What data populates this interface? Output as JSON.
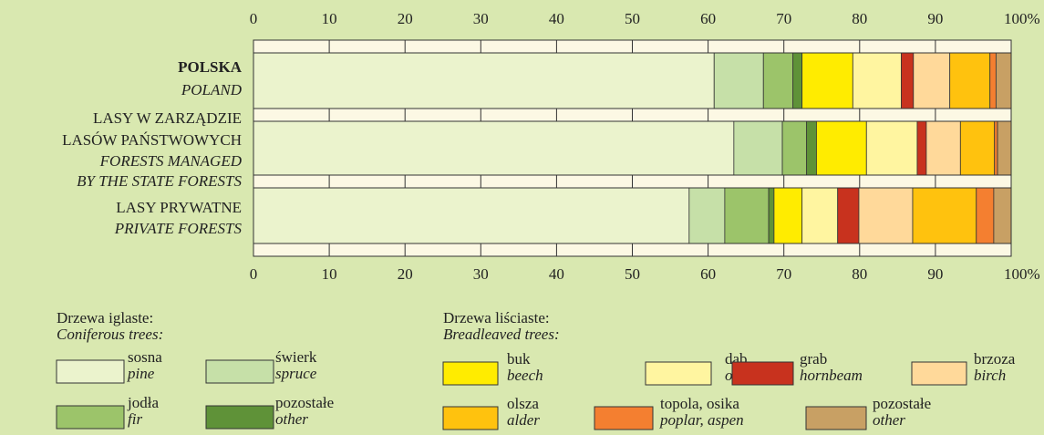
{
  "chart_data": {
    "type": "stacked-bar-horizontal",
    "categories": [
      {
        "pl": [
          "POLSKA"
        ],
        "en": [
          "POLAND"
        ]
      },
      {
        "pl": [
          "LASY W ZARZĄDZIE",
          "LASÓW PAŃSTWOWYCH"
        ],
        "en": [
          "FORESTS MANAGED",
          "BY THE STATE FORESTS"
        ]
      },
      {
        "pl": [
          "LASY PRYWATNE"
        ],
        "en": [
          "PRIVATE FORESTS"
        ]
      }
    ],
    "xlim": [
      0,
      100
    ],
    "xticks": [
      0,
      10,
      20,
      30,
      40,
      50,
      60,
      70,
      80,
      90,
      {
        "value": 100,
        "label": "100%"
      }
    ],
    "groups": [
      {
        "name": "Drzewa iglaste:",
        "name_en": "Coniferous trees:"
      },
      {
        "name": "Drzewa liściaste:",
        "name_en": "Breadleaved trees:"
      }
    ],
    "series": [
      {
        "name": "sosna",
        "name_en": "pine",
        "group": 0,
        "color": "#ebf3cd",
        "values": [
          60.8,
          63.4,
          57.5
        ]
      },
      {
        "name": "świerk",
        "name_en": "spruce",
        "group": 0,
        "color": "#c6e0a8",
        "values": [
          6.5,
          6.4,
          4.7
        ]
      },
      {
        "name": "jodła",
        "name_en": "fir",
        "group": 0,
        "color": "#9cc46a",
        "values": [
          3.9,
          3.2,
          5.8
        ]
      },
      {
        "name": "pozostałe",
        "name_en": "other",
        "group": 0,
        "color": "#5f9238",
        "values": [
          1.2,
          1.3,
          0.7
        ]
      },
      {
        "name": "buk",
        "name_en": "beech",
        "group": 1,
        "color": "#ffec00",
        "values": [
          6.7,
          6.6,
          3.7
        ]
      },
      {
        "name": "dąb",
        "name_en": "oak",
        "group": 1,
        "color": "#fff5a0",
        "values": [
          6.4,
          6.7,
          4.7
        ]
      },
      {
        "name": "grab",
        "name_en": "hornbeam",
        "group": 1,
        "color": "#c8321e",
        "values": [
          1.6,
          1.2,
          2.8
        ]
      },
      {
        "name": "brzoza",
        "name_en": "birch",
        "group": 1,
        "color": "#ffd99a",
        "values": [
          4.8,
          4.5,
          7.1
        ]
      },
      {
        "name": "olsza",
        "name_en": "alder",
        "group": 1,
        "color": "#ffc20e",
        "values": [
          5.3,
          4.5,
          8.4
        ]
      },
      {
        "name": "topola, osika",
        "name_en": "poplar, aspen",
        "group": 1,
        "color": "#f47f30",
        "values": [
          0.8,
          0.4,
          2.3
        ]
      },
      {
        "name": "pozostałe",
        "name_en": "other",
        "group": 1,
        "color": "#c8a064",
        "values": [
          2.0,
          1.8,
          2.3
        ]
      }
    ]
  }
}
